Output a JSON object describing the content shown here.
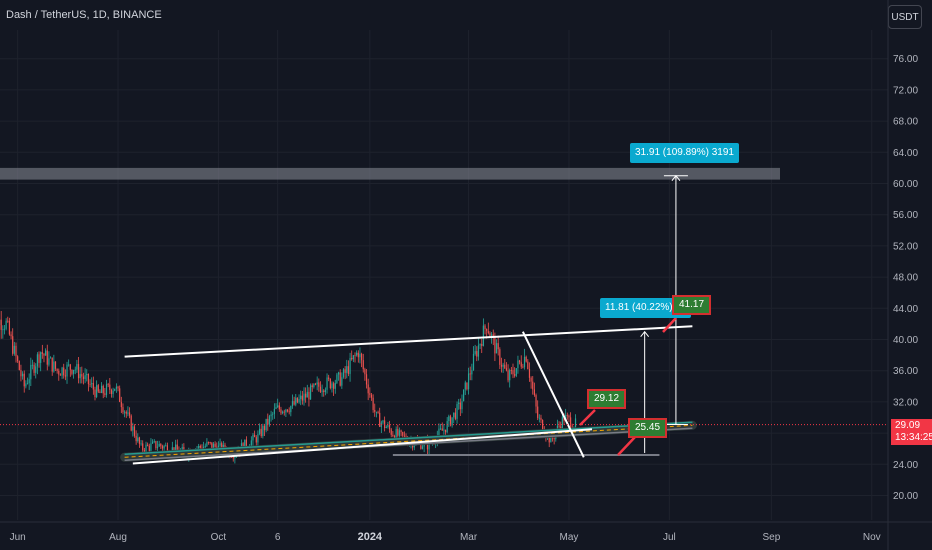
{
  "header": {
    "title": "Dash / TetherUS, 1D, BINANCE"
  },
  "currency": "USDT",
  "price_tag": {
    "value": "29.09",
    "countdown": "13:34:25"
  },
  "annotations": {
    "big_measure": "31.91 (109.89%) 3191",
    "small_measure": "11.81 (40.22%) 11",
    "target_label": "41.17",
    "label_2912": "29.12",
    "label_2545": "25.45"
  },
  "chart_data": {
    "type": "candlestick",
    "title": "Dash / TetherUS, 1D, BINANCE",
    "y_ticks": [
      20.0,
      24.0,
      28.0,
      32.0,
      36.0,
      40.0,
      44.0,
      48.0,
      52.0,
      56.0,
      60.0,
      64.0,
      68.0,
      72.0,
      76.0
    ],
    "y_tick_labels": [
      "20.00",
      "24.00",
      "28.00",
      "32.00",
      "36.00",
      "40.00",
      "44.00",
      "48.00",
      "52.00",
      "56.00",
      "60.00",
      "64.00",
      "68.00",
      "72.00",
      "76.00"
    ],
    "x_ticks": [
      "Jun",
      "Aug",
      "Oct",
      "6",
      "2024",
      "Mar",
      "May",
      "Jul",
      "Sep",
      "Nov"
    ],
    "ylim": [
      17.0,
      79.5
    ],
    "grid": true,
    "last_price": 29.09,
    "price_path": [
      {
        "date": "2023-05-15",
        "close": 43.0
      },
      {
        "date": "2023-05-25",
        "close": 42.0
      },
      {
        "date": "2023-06-05",
        "close": 34.0
      },
      {
        "date": "2023-06-15",
        "close": 38.5
      },
      {
        "date": "2023-06-25",
        "close": 36.0
      },
      {
        "date": "2023-07-05",
        "close": 36.5
      },
      {
        "date": "2023-07-20",
        "close": 33.0
      },
      {
        "date": "2023-07-30",
        "close": 34.0
      },
      {
        "date": "2023-08-05",
        "close": 31.0
      },
      {
        "date": "2023-08-15",
        "close": 26.0
      },
      {
        "date": "2023-08-25",
        "close": 26.5
      },
      {
        "date": "2023-09-10",
        "close": 25.5
      },
      {
        "date": "2023-09-25",
        "close": 26.5
      },
      {
        "date": "2023-10-10",
        "close": 25.5
      },
      {
        "date": "2023-10-25",
        "close": 27.5
      },
      {
        "date": "2023-11-05",
        "close": 31.0
      },
      {
        "date": "2023-11-15",
        "close": 31.5
      },
      {
        "date": "2023-12-01",
        "close": 34.0
      },
      {
        "date": "2023-12-15",
        "close": 35.0
      },
      {
        "date": "2023-12-25",
        "close": 38.5
      },
      {
        "date": "2024-01-05",
        "close": 30.0
      },
      {
        "date": "2024-01-15",
        "close": 28.0
      },
      {
        "date": "2024-01-25",
        "close": 27.0
      },
      {
        "date": "2024-02-05",
        "close": 26.5
      },
      {
        "date": "2024-02-15",
        "close": 28.5
      },
      {
        "date": "2024-02-25",
        "close": 31.5
      },
      {
        "date": "2024-03-05",
        "close": 38.0
      },
      {
        "date": "2024-03-12",
        "close": 42.0
      },
      {
        "date": "2024-03-18",
        "close": 38.5
      },
      {
        "date": "2024-03-25",
        "close": 35.0
      },
      {
        "date": "2024-04-05",
        "close": 38.0
      },
      {
        "date": "2024-04-12",
        "close": 30.0
      },
      {
        "date": "2024-04-20",
        "close": 27.0
      },
      {
        "date": "2024-04-28",
        "close": 30.0
      },
      {
        "date": "2024-05-05",
        "close": 29.09
      }
    ],
    "levels": {
      "resistance_zone": [
        60.5,
        62.0
      ],
      "upper_trendline": {
        "from": {
          "date": "2023-08-05",
          "price": 37.8
        },
        "to": {
          "date": "2024-07-15",
          "price": 41.7
        }
      },
      "lower_channel": {
        "from": {
          "date": "2023-08-05",
          "price": 24.9
        },
        "to": {
          "date": "2024-07-15",
          "price": 29.0
        }
      },
      "support_line": {
        "from": {
          "date": "2023-08-10",
          "price": 24.1
        },
        "to": {
          "date": "2024-05-15",
          "price": 28.5
        }
      },
      "flat_support": {
        "from": {
          "date": "2024-01-15",
          "price": 25.2
        },
        "to": {
          "date": "2024-06-25",
          "price": 25.2
        }
      },
      "current_price_line": 29.09
    }
  }
}
